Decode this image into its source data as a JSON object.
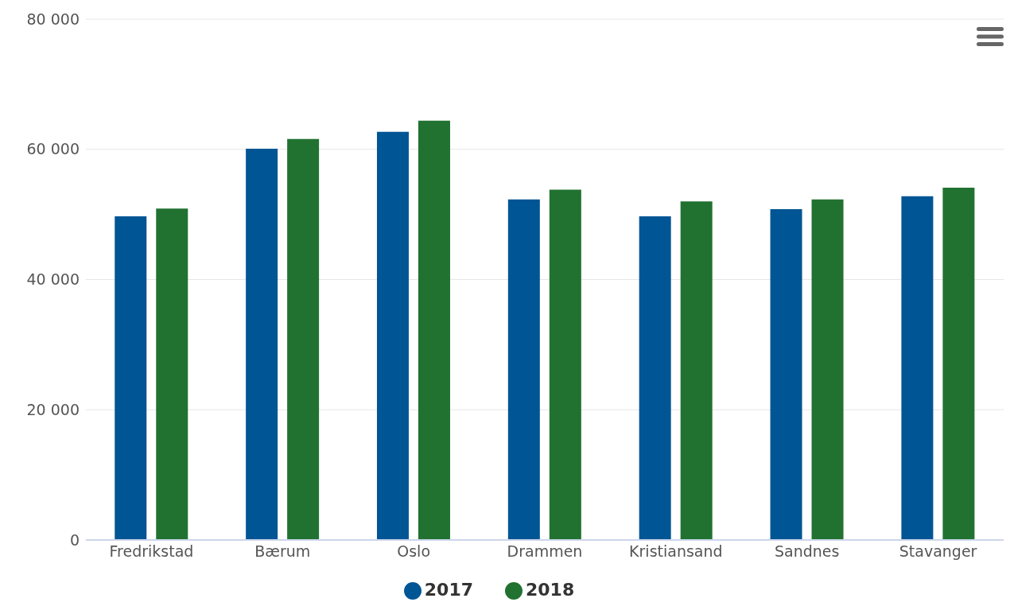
{
  "chart_data": {
    "type": "bar",
    "categories": [
      "Fredrikstad",
      "Bærum",
      "Oslo",
      "Drammen",
      "Kristiansand",
      "Sandnes",
      "Stavanger"
    ],
    "series": [
      {
        "name": "2017",
        "color": "#005595",
        "values": [
          49700,
          60100,
          62700,
          52300,
          49700,
          50800,
          52800
        ]
      },
      {
        "name": "2018",
        "color": "#217230",
        "values": [
          50900,
          61600,
          64400,
          53800,
          52000,
          52300,
          54100
        ]
      }
    ],
    "ylim": [
      0,
      80000
    ],
    "yticks": [
      0,
      20000,
      40000,
      60000,
      80000
    ],
    "grid": "y",
    "legend": "bottom"
  }
}
